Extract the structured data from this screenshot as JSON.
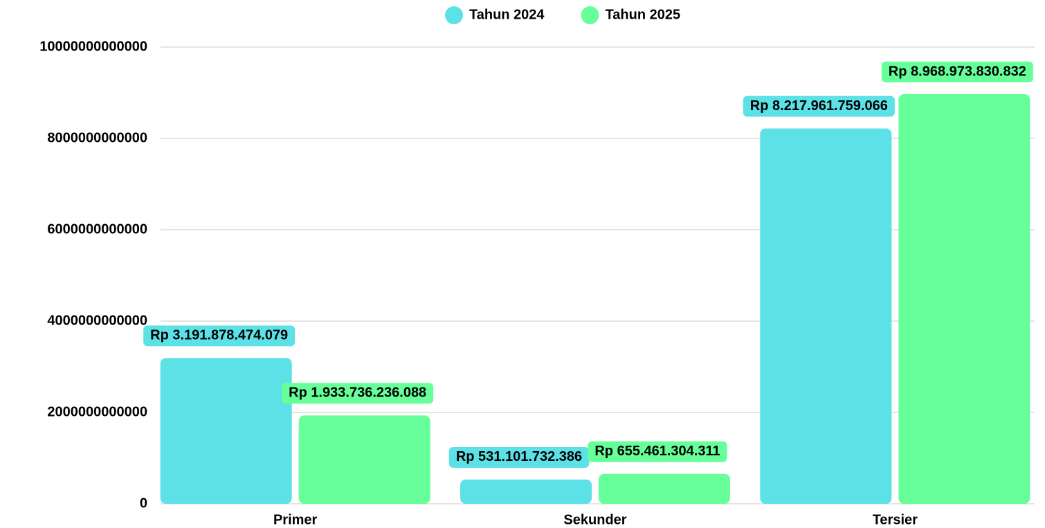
{
  "chart_data": {
    "type": "bar",
    "categories": [
      "Primer",
      "Sekunder",
      "Tersier"
    ],
    "series": [
      {
        "name": "Tahun 2024",
        "color": "#5ce1e6",
        "values": [
          3191878474079,
          531101732386,
          8217961759066
        ],
        "value_labels": [
          "Rp 3.191.878.474.079",
          "Rp 531.101.732.386",
          "Rp 8.217.961.759.066"
        ]
      },
      {
        "name": "Tahun 2025",
        "color": "#66ff99",
        "values": [
          1933736236088,
          655461304311,
          8968973830832
        ],
        "value_labels": [
          "Rp 1.933.736.236.088",
          "Rp 655.461.304.311",
          "Rp 8.968.973.830.832"
        ]
      }
    ],
    "ylim": [
      0,
      10000000000000
    ],
    "yticks": [
      0,
      2000000000000,
      4000000000000,
      6000000000000,
      8000000000000,
      10000000000000
    ],
    "grid": true,
    "legend": "top"
  }
}
